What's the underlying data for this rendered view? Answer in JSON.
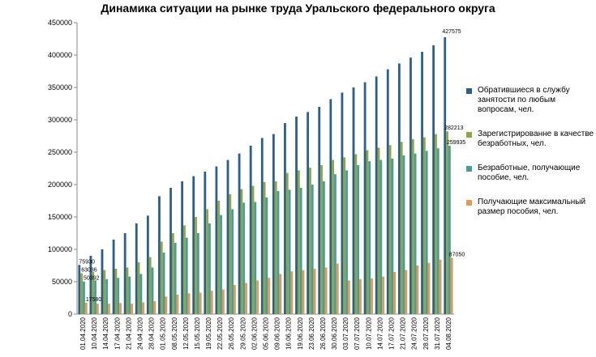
{
  "chart_data": {
    "type": "bar",
    "title": "Динамика ситуации  на рынке труда Уральского федерального округа",
    "categories": [
      "01.04.2020",
      "10.04.2020",
      "14.04.2020",
      "17.04.2020",
      "21.04.2020",
      "24.04.2020",
      "28.04.2020",
      "01.05.2020",
      "08.05.2020",
      "12.05.2020",
      "15.05.2020",
      "19.05.2020",
      "22.05.2020",
      "26.05.2020",
      "29.05.2020",
      "02.06.2020",
      "05.06.2020",
      "09.06.2020",
      "16.06.2020",
      "19.06.2020",
      "23.06.2020",
      "26.06.2020",
      "30.06.2020",
      "03.07.2020",
      "07.07.2020",
      "10.07.2020",
      "14.07.2020",
      "17.07.2020",
      "21.07.2020",
      "24.07.2020",
      "28.07.2020",
      "31.07.2020",
      "04.08.2020"
    ],
    "ylim": [
      0,
      450000
    ],
    "yticks": [
      0,
      50000,
      100000,
      150000,
      200000,
      250000,
      300000,
      350000,
      400000,
      450000
    ],
    "legend_position": "right",
    "grid": false,
    "series": [
      {
        "name": "Обратившиеся в службу занятости по любым вопросам, чел.",
        "color": "#2e5f8a",
        "values": [
          75930,
          90000,
          100000,
          115000,
          125000,
          140000,
          152000,
          182000,
          195000,
          205000,
          213000,
          220000,
          228000,
          238000,
          248000,
          260000,
          272000,
          278000,
          295000,
          305000,
          312000,
          320000,
          332000,
          342000,
          350000,
          358000,
          367000,
          378000,
          387000,
          396000,
          405000,
          415000,
          427575
        ],
        "labels": {
          "0": "75930",
          "32": "427575"
        }
      },
      {
        "name": "Зарегистрированне в качестве безработных, чел.",
        "color": "#8aa84a",
        "values": [
          63036,
          65000,
          68000,
          70000,
          72000,
          80000,
          88000,
          112000,
          125000,
          137000,
          150000,
          162000,
          175000,
          185000,
          193000,
          198000,
          204000,
          205000,
          218000,
          222000,
          226000,
          230000,
          238000,
          242000,
          247000,
          253000,
          257000,
          261000,
          266000,
          270000,
          273000,
          278000,
          282213
        ],
        "labels": {
          "0": "63036",
          "32": "282213"
        }
      },
      {
        "name": "Безработные, получающие пособие, чел.",
        "color": "#4a9c9c",
        "values": [
          50392,
          52000,
          54000,
          56000,
          58000,
          62000,
          72000,
          95000,
          110000,
          118000,
          125000,
          140000,
          153000,
          162000,
          172000,
          173000,
          180000,
          190000,
          192000,
          195000,
          200000,
          205000,
          216000,
          222000,
          230000,
          236000,
          238000,
          240000,
          245000,
          248000,
          252000,
          256000,
          259935
        ],
        "labels": {
          "0": "50392",
          "32": "259935"
        }
      },
      {
        "name": "Получающие максимальный размер пособия, чел.",
        "color": "#e19a58",
        "values": [
          17580,
          16000,
          16000,
          17000,
          16000,
          18000,
          20000,
          27000,
          30000,
          32000,
          33000,
          36000,
          38000,
          45000,
          48000,
          52000,
          56000,
          62000,
          66000,
          68000,
          70000,
          72000,
          78000,
          52000,
          54000,
          55000,
          58000,
          65000,
          68000,
          75000,
          79000,
          84000,
          87050
        ],
        "labels": {
          "0": "17580",
          "32": "87050"
        }
      }
    ]
  }
}
